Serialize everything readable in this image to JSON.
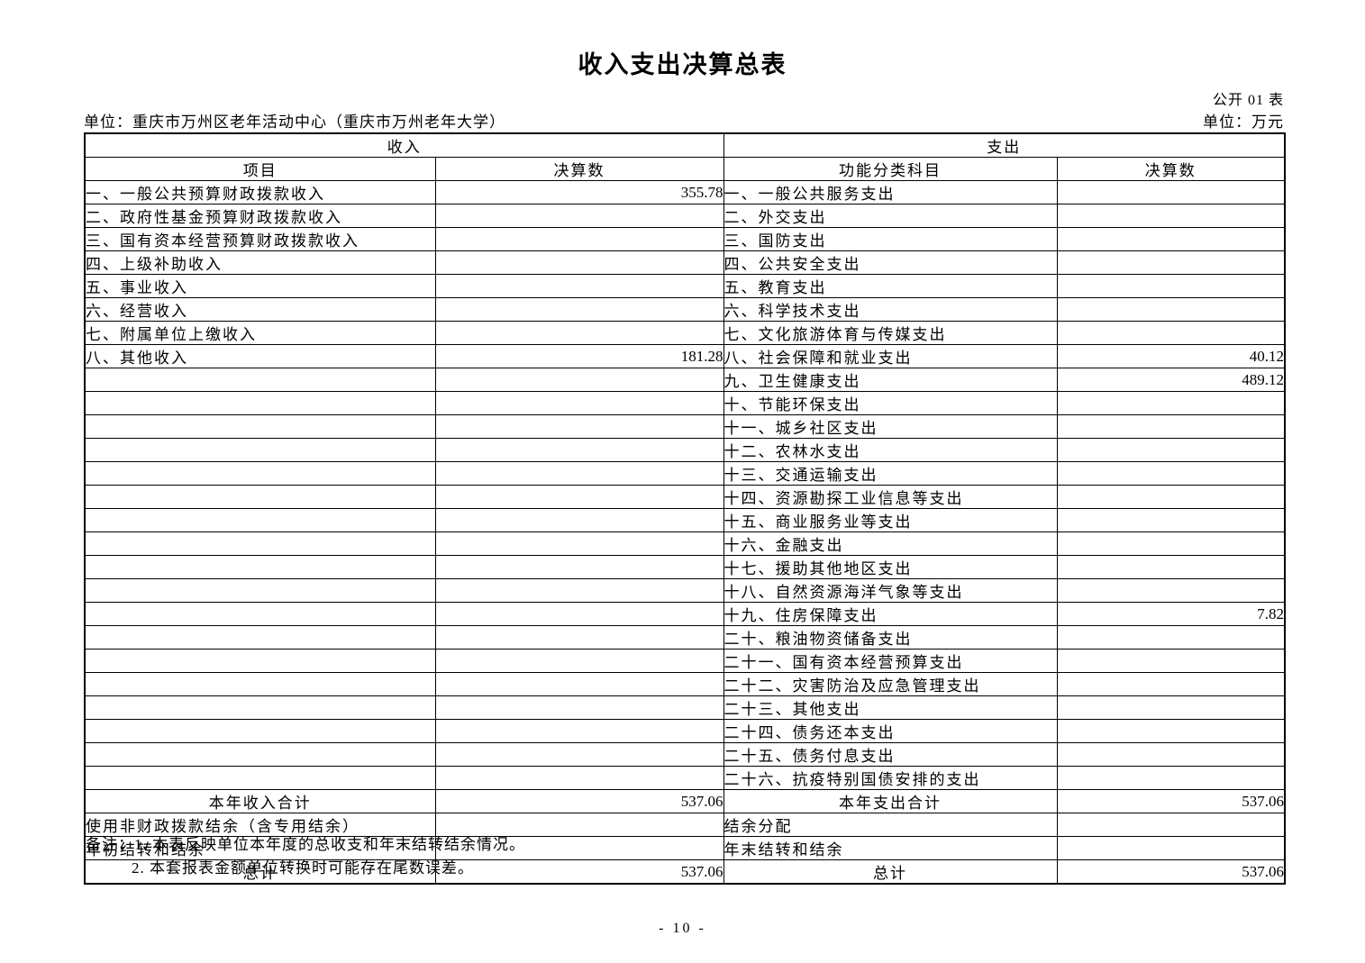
{
  "page": {
    "title": "收入支出决算总表",
    "table_code": "公开 01 表",
    "unit_left": "单位：重庆市万州区老年活动中心（重庆市万州老年大学）",
    "unit_right": "单位：万元",
    "page_number": "- 10 -"
  },
  "table": {
    "income_header": "收入",
    "expense_header": "支出",
    "columns": [
      "项目",
      "决算数",
      "功能分类科目",
      "决算数"
    ],
    "income_rows": [
      {
        "label": "一、一般公共预算财政拨款收入",
        "value": "355.78"
      },
      {
        "label": "二、政府性基金预算财政拨款收入",
        "value": ""
      },
      {
        "label": "三、国有资本经营预算财政拨款收入",
        "value": ""
      },
      {
        "label": "四、上级补助收入",
        "value": ""
      },
      {
        "label": "五、事业收入",
        "value": ""
      },
      {
        "label": "六、经营收入",
        "value": ""
      },
      {
        "label": "七、附属单位上缴收入",
        "value": ""
      },
      {
        "label": "八、其他收入",
        "value": "181.28"
      },
      {
        "label": "",
        "value": ""
      },
      {
        "label": "",
        "value": ""
      },
      {
        "label": "",
        "value": ""
      },
      {
        "label": "",
        "value": ""
      },
      {
        "label": "",
        "value": ""
      },
      {
        "label": "",
        "value": ""
      },
      {
        "label": "",
        "value": ""
      },
      {
        "label": "",
        "value": ""
      },
      {
        "label": "",
        "value": ""
      },
      {
        "label": "",
        "value": ""
      },
      {
        "label": "",
        "value": ""
      },
      {
        "label": "",
        "value": ""
      },
      {
        "label": "",
        "value": ""
      },
      {
        "label": "",
        "value": ""
      },
      {
        "label": "",
        "value": ""
      },
      {
        "label": "",
        "value": ""
      },
      {
        "label": "",
        "value": ""
      },
      {
        "label": "",
        "value": ""
      },
      {
        "label": "本年收入合计",
        "value": "537.06",
        "center": true
      },
      {
        "label": "使用非财政拨款结余（含专用结余）",
        "value": ""
      },
      {
        "label": "年初结转和结余",
        "value": ""
      },
      {
        "label": "总计",
        "value": "537.06",
        "center": true
      }
    ],
    "expense_rows": [
      {
        "label": "一、一般公共服务支出",
        "value": ""
      },
      {
        "label": "二、外交支出",
        "value": ""
      },
      {
        "label": "三、国防支出",
        "value": ""
      },
      {
        "label": "四、公共安全支出",
        "value": ""
      },
      {
        "label": "五、教育支出",
        "value": ""
      },
      {
        "label": "六、科学技术支出",
        "value": ""
      },
      {
        "label": "七、文化旅游体育与传媒支出",
        "value": ""
      },
      {
        "label": "八、社会保障和就业支出",
        "value": "40.12"
      },
      {
        "label": "九、卫生健康支出",
        "value": "489.12"
      },
      {
        "label": "十、节能环保支出",
        "value": ""
      },
      {
        "label": "十一、城乡社区支出",
        "value": ""
      },
      {
        "label": "十二、农林水支出",
        "value": ""
      },
      {
        "label": "十三、交通运输支出",
        "value": ""
      },
      {
        "label": "十四、资源勘探工业信息等支出",
        "value": ""
      },
      {
        "label": "十五、商业服务业等支出",
        "value": ""
      },
      {
        "label": "十六、金融支出",
        "value": ""
      },
      {
        "label": "十七、援助其他地区支出",
        "value": ""
      },
      {
        "label": "十八、自然资源海洋气象等支出",
        "value": ""
      },
      {
        "label": "十九、住房保障支出",
        "value": "7.82"
      },
      {
        "label": "二十、粮油物资储备支出",
        "value": ""
      },
      {
        "label": "二十一、国有资本经营预算支出",
        "value": ""
      },
      {
        "label": "二十二、灾害防治及应急管理支出",
        "value": ""
      },
      {
        "label": "二十三、其他支出",
        "value": ""
      },
      {
        "label": "二十四、债务还本支出",
        "value": ""
      },
      {
        "label": "二十五、债务付息支出",
        "value": ""
      },
      {
        "label": "二十六、抗疫特别国债安排的支出",
        "value": ""
      },
      {
        "label": "本年支出合计",
        "value": "537.06",
        "center": true
      },
      {
        "label": "结余分配",
        "value": ""
      },
      {
        "label": "年末结转和结余",
        "value": ""
      },
      {
        "label": "总计",
        "value": "537.06",
        "center": true
      }
    ]
  },
  "notes": {
    "label": "备注：",
    "items": [
      "1. 本表反映单位本年度的总收支和年末结转结余情况。",
      "2. 本套报表金额单位转换时可能存在尾数误差。"
    ]
  }
}
